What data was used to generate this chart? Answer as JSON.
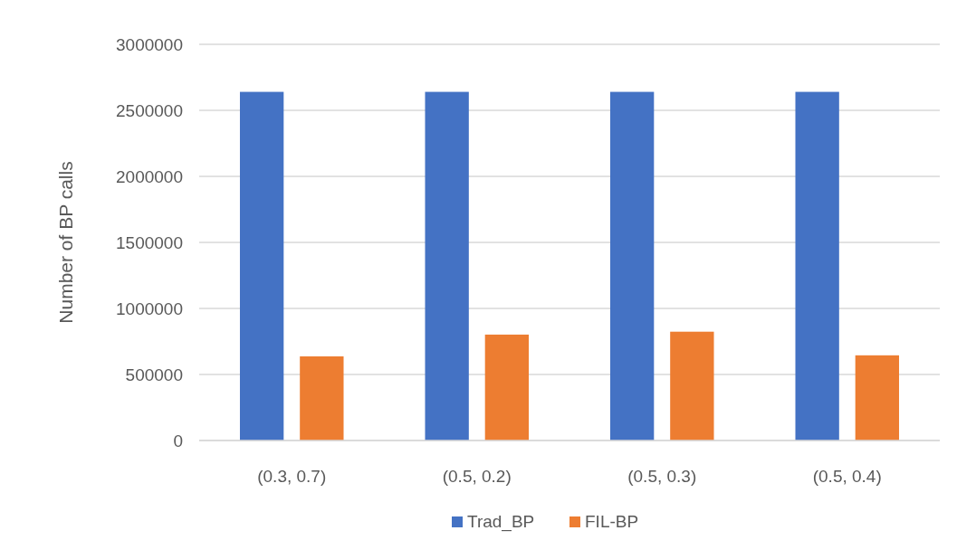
{
  "chart_data": {
    "type": "bar",
    "ylabel": "Number of BP calls",
    "categories": [
      "(0.3, 0.7)",
      "(0.5, 0.2)",
      "(0.5, 0.3)",
      "(0.5, 0.4)"
    ],
    "series": [
      {
        "name": "Trad_BP",
        "color": "#4472c4",
        "values": [
          2640000,
          2640000,
          2640000,
          2640000
        ]
      },
      {
        "name": "FIL-BP",
        "color": "#ed7d31",
        "values": [
          637000,
          802000,
          824000,
          645000
        ]
      }
    ],
    "ylim": [
      0,
      3000000
    ],
    "yticks": [
      0,
      500000,
      1000000,
      1500000,
      2000000,
      2500000,
      3000000
    ],
    "grid": "y",
    "legend": "bottom"
  }
}
